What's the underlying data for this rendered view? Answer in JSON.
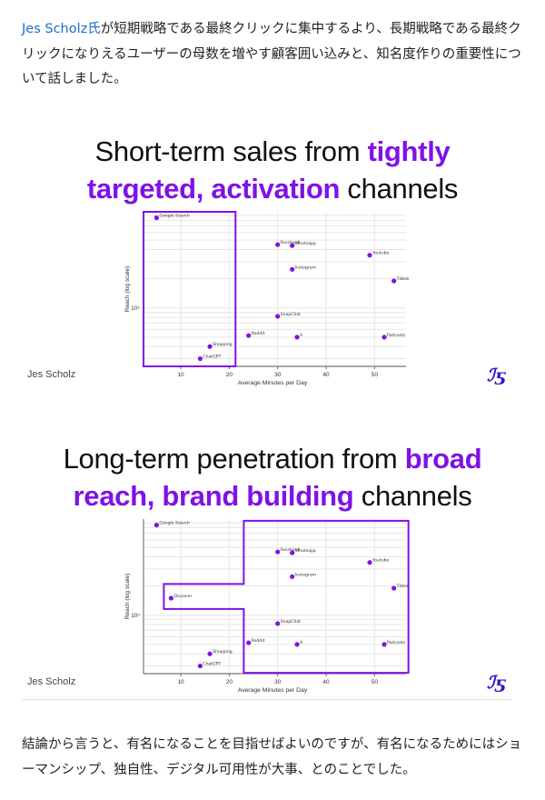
{
  "intro": {
    "link_text": "Jes Scholz氏",
    "text": "が短期戦略である最終クリックに集中するより、長期戦略である最終クリックになりえるユーザーの母数を増やす顧客囲い込みと、知名度作りの重要性について話しました。"
  },
  "conclusion": {
    "text": "結論から言うと、有名になることを目指せばよいのですが、有名になるためにはショーマンシップ、独自性、デジタル可用性が大事、とのことでした。"
  },
  "accent_color": "#7f12e6",
  "chart_data": [
    {
      "type": "scatter",
      "title_plain_1": "Short-term sales from ",
      "title_bold_1": "tightly",
      "title_bold_2": "targeted, activation",
      "title_plain_2": " channels",
      "xlabel": "Average Minutes per Day",
      "ylabel": "Reach (log scale)",
      "xlim": [
        2.3,
        56.5
      ],
      "ylim": [
        25000,
        980000
      ],
      "yscale": "log",
      "xticks": [
        10,
        20,
        30,
        40,
        50
      ],
      "ytick_label": "10⁵",
      "grid": true,
      "author": "Jes Scholz",
      "logo": "JS",
      "points": [
        {
          "label": "Google Search",
          "x": 5,
          "y": 850000
        },
        {
          "label": "Facebook",
          "x": 30,
          "y": 450000
        },
        {
          "label": "Whatsapp",
          "x": 33,
          "y": 440000
        },
        {
          "label": "Youtube",
          "x": 49,
          "y": 350000
        },
        {
          "label": "Instagram",
          "x": 33,
          "y": 250000
        },
        {
          "label": "Tiktok",
          "x": 54,
          "y": 190000
        },
        {
          "label": "SnapChat",
          "x": 30,
          "y": 82000
        },
        {
          "label": "Reddit",
          "x": 24,
          "y": 52000
        },
        {
          "label": "X",
          "x": 34,
          "y": 50000
        },
        {
          "label": "Podcasts",
          "x": 52,
          "y": 50000
        },
        {
          "label": "Shopping",
          "x": 16,
          "y": 40000
        },
        {
          "label": "ChatGPT",
          "x": 14,
          "y": 30000
        }
      ],
      "highlight_region": [
        [
          2.3,
          980000
        ],
        [
          21.3,
          980000
        ],
        [
          21.3,
          25000
        ],
        [
          2.3,
          25000
        ]
      ]
    },
    {
      "type": "scatter",
      "title_plain_1": "Long-term penetration from ",
      "title_bold_1": "broad",
      "title_bold_2": "reach, brand building",
      "title_plain_2": " channels",
      "xlabel": "Average Minutes per Day",
      "ylabel": "Reach (log scale)",
      "xlim": [
        2.3,
        56.5
      ],
      "ylim": [
        25000,
        980000
      ],
      "yscale": "log",
      "xticks": [
        10,
        20,
        30,
        40,
        50
      ],
      "ytick_label": "10⁵",
      "grid": true,
      "author": "Jes Scholz",
      "logo": "JS",
      "points": [
        {
          "label": "Google Search",
          "x": 5,
          "y": 850000
        },
        {
          "label": "Facebook",
          "x": 30,
          "y": 450000
        },
        {
          "label": "Whatsapp",
          "x": 33,
          "y": 440000
        },
        {
          "label": "Youtube",
          "x": 49,
          "y": 350000
        },
        {
          "label": "Instagram",
          "x": 33,
          "y": 250000
        },
        {
          "label": "Tiktok",
          "x": 54,
          "y": 190000
        },
        {
          "label": "Discover",
          "x": 8,
          "y": 150000
        },
        {
          "label": "SnapChat",
          "x": 30,
          "y": 82000
        },
        {
          "label": "Reddit",
          "x": 24,
          "y": 52000
        },
        {
          "label": "X",
          "x": 34,
          "y": 50000
        },
        {
          "label": "Podcasts",
          "x": 52,
          "y": 50000
        },
        {
          "label": "Shopping",
          "x": 16,
          "y": 40000
        },
        {
          "label": "ChatGPT",
          "x": 14,
          "y": 30000
        }
      ],
      "highlight_region": [
        [
          23,
          940000
        ],
        [
          57,
          940000
        ],
        [
          57,
          25500
        ],
        [
          23,
          25500
        ],
        [
          23,
          116000
        ],
        [
          6.5,
          116000
        ],
        [
          6.5,
          210000
        ],
        [
          23,
          210000
        ]
      ]
    }
  ]
}
